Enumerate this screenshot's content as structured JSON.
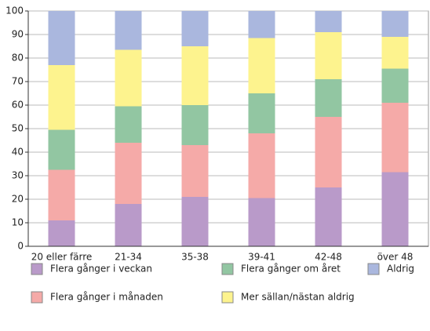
{
  "chart_data": {
    "type": "stacked_bar",
    "categories": [
      "20 eller färre",
      "21-34",
      "35-38",
      "39-41",
      "42-48",
      "över 48"
    ],
    "series": [
      {
        "name": "Flera gånger i veckan",
        "color": "#b99ac9",
        "values": [
          11,
          18,
          21,
          20.5,
          25,
          31.5
        ]
      },
      {
        "name": "Flera gånger i månaden",
        "color": "#f5aaa8",
        "values": [
          21.5,
          26,
          22,
          27.5,
          30,
          29.5
        ]
      },
      {
        "name": "Flera gånger om året",
        "color": "#92c6a2",
        "values": [
          17,
          15.5,
          17,
          17,
          16,
          14.5
        ]
      },
      {
        "name": "Mer sällan/nästan aldrig",
        "color": "#fdf38e",
        "values": [
          27.5,
          24,
          25,
          23.5,
          20,
          13.5
        ]
      },
      {
        "name": "Aldrig",
        "color": "#aab7de",
        "values": [
          23,
          16.5,
          15,
          11.5,
          9,
          11
        ]
      }
    ],
    "ylim": [
      0,
      100
    ],
    "yticks": [
      0,
      10,
      20,
      30,
      40,
      50,
      60,
      70,
      80,
      90,
      100
    ],
    "grid": true
  }
}
